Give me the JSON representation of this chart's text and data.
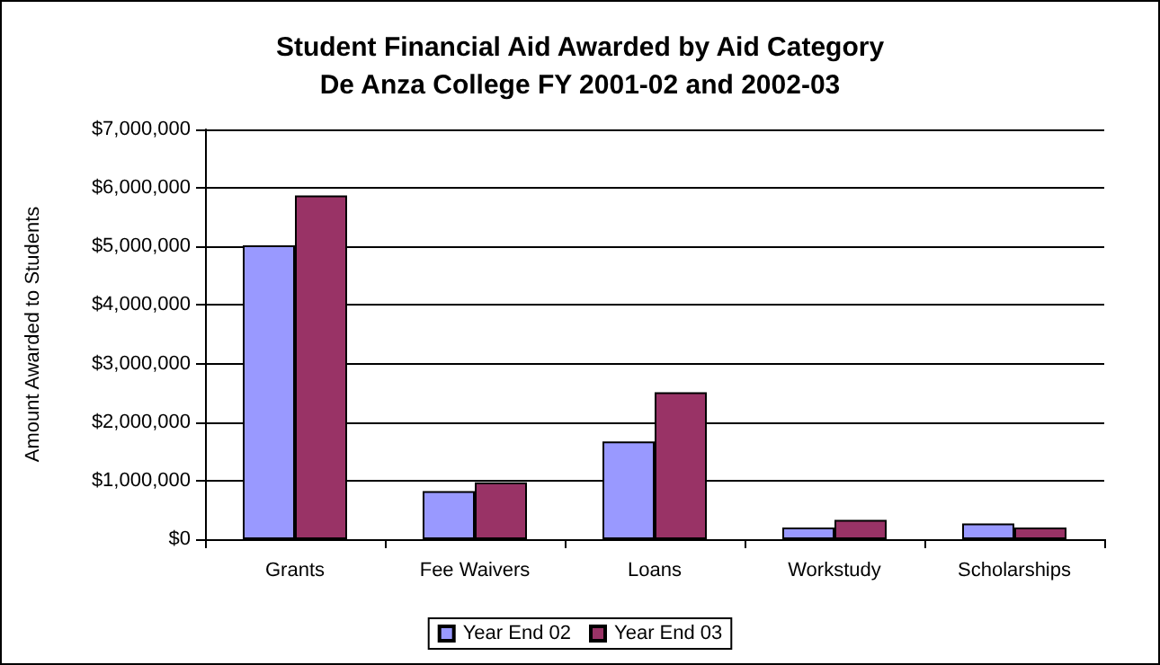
{
  "chart_data": {
    "type": "bar",
    "title": "Student Financial Aid Awarded by Aid Category\nDe Anza College FY 2001-02 and 2002-03",
    "ylabel": "Amount Awarded to Students",
    "categories": [
      "Grants",
      "Fee Waivers",
      "Loans",
      "Workstudy",
      "Scholarships"
    ],
    "series": [
      {
        "name": "Year End 02",
        "color": "#9999ff",
        "values": [
          5020000,
          820000,
          1670000,
          200000,
          270000
        ]
      },
      {
        "name": "Year End 03",
        "color": "#993366",
        "values": [
          5870000,
          970000,
          2510000,
          330000,
          200000
        ]
      }
    ],
    "ylim": [
      0,
      7000000
    ],
    "yticks": [
      {
        "value": 0,
        "label": "$0"
      },
      {
        "value": 1000000,
        "label": "$1,000,000"
      },
      {
        "value": 2000000,
        "label": "$2,000,000"
      },
      {
        "value": 3000000,
        "label": "$3,000,000"
      },
      {
        "value": 4000000,
        "label": "$4,000,000"
      },
      {
        "value": 5000000,
        "label": "$5,000,000"
      },
      {
        "value": 6000000,
        "label": "$6,000,000"
      },
      {
        "value": 7000000,
        "label": "$7,000,000"
      }
    ],
    "grid": "y",
    "legend": "bottom"
  }
}
